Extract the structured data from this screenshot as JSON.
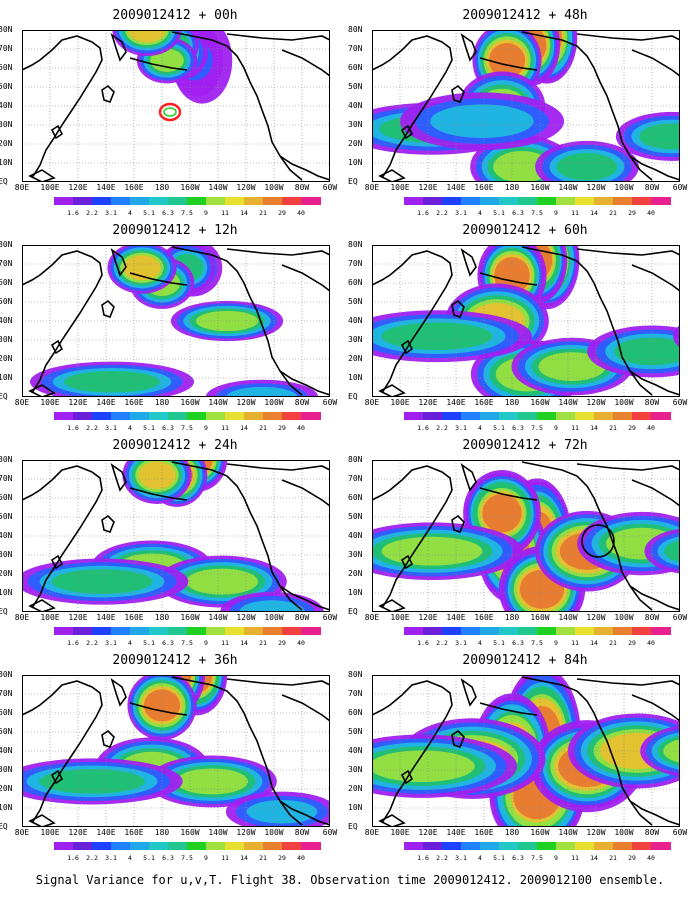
{
  "panels": [
    {
      "title": "2009012412 + 00h",
      "blobs": [
        [
          180,
          -0.3,
          1,
          14,
          30
        ],
        [
          175,
          -0.3,
          1.5,
          12,
          25
        ],
        [
          172,
          -0.3,
          2,
          12,
          20
        ],
        [
          162,
          -0.35,
          3,
          11,
          18
        ],
        [
          155,
          -0.4,
          4,
          10,
          16
        ],
        [
          145,
          -0.3,
          5,
          14,
          16
        ],
        [
          125,
          -0.5,
          6,
          16,
          18
        ]
      ],
      "extra": "ring"
    },
    {
      "title": "2009012412 + 48h",
      "blobs": [
        [
          175,
          -0.45,
          10,
          14,
          32
        ],
        [
          160,
          -0.4,
          8,
          13,
          28
        ],
        [
          135,
          -0.3,
          7,
          16,
          26
        ],
        [
          130,
          0,
          5,
          20,
          24
        ],
        [
          150,
          0.4,
          5,
          24,
          22
        ],
        [
          60,
          0.15,
          4,
          42,
          18
        ],
        [
          110,
          0.1,
          3,
          38,
          20
        ],
        [
          215,
          0.4,
          4,
          24,
          18
        ],
        [
          300,
          0.2,
          4,
          26,
          17
        ]
      ],
      "extra": ""
    },
    {
      "title": "2009012412 + 12h",
      "blobs": [
        [
          170,
          -0.35,
          3,
          14,
          20
        ],
        [
          165,
          -0.35,
          4,
          13,
          18
        ],
        [
          140,
          -0.25,
          5,
          15,
          18
        ],
        [
          120,
          -0.35,
          6,
          16,
          18
        ],
        [
          205,
          0,
          5,
          26,
          14
        ],
        [
          90,
          0.4,
          4,
          38,
          14
        ],
        [
          240,
          0.5,
          3,
          26,
          12
        ]
      ],
      "extra": ""
    },
    {
      "title": "2009012412 + 60h",
      "blobs": [
        [
          175,
          -0.4,
          10,
          15,
          34
        ],
        [
          165,
          -0.4,
          9,
          14,
          30
        ],
        [
          140,
          -0.3,
          8,
          16,
          28
        ],
        [
          125,
          0,
          6,
          24,
          26
        ],
        [
          155,
          0.35,
          5,
          26,
          24
        ],
        [
          200,
          0.3,
          5,
          28,
          20
        ],
        [
          65,
          0.1,
          4,
          44,
          18
        ],
        [
          280,
          0.2,
          4,
          30,
          18
        ],
        [
          340,
          0.1,
          3,
          18,
          14
        ]
      ],
      "extra": ""
    },
    {
      "title": "2009012412 + 24h",
      "blobs": [
        [
          175,
          -0.5,
          8,
          14,
          22
        ],
        [
          155,
          -0.4,
          7,
          14,
          22
        ],
        [
          135,
          -0.4,
          6,
          16,
          20
        ],
        [
          130,
          0.2,
          5,
          28,
          18
        ],
        [
          200,
          0.3,
          5,
          30,
          18
        ],
        [
          80,
          0.3,
          4,
          40,
          16
        ],
        [
          250,
          0.5,
          3,
          24,
          14
        ]
      ],
      "extra": ""
    },
    {
      "title": "2009012412 + 72h",
      "blobs": [
        [
          165,
          0,
          11,
          16,
          40
        ],
        [
          140,
          0.1,
          10,
          16,
          36
        ],
        [
          130,
          -0.15,
          9,
          18,
          30
        ],
        [
          170,
          0.35,
          8,
          20,
          30
        ],
        [
          215,
          0.1,
          7,
          24,
          28
        ],
        [
          60,
          0.1,
          5,
          42,
          20
        ],
        [
          270,
          0.05,
          5,
          30,
          22
        ],
        [
          320,
          0.1,
          4,
          22,
          16
        ]
      ],
      "extra": "circle"
    },
    {
      "title": "2009012412 + 36h",
      "blobs": [
        [
          175,
          -0.5,
          9,
          14,
          28
        ],
        [
          155,
          -0.5,
          8,
          13,
          26
        ],
        [
          140,
          -0.3,
          7,
          16,
          24
        ],
        [
          130,
          0.1,
          5,
          26,
          20
        ],
        [
          190,
          0.2,
          5,
          30,
          18
        ],
        [
          70,
          0.2,
          4,
          42,
          16
        ],
        [
          260,
          0.4,
          3,
          26,
          14
        ]
      ],
      "extra": ""
    },
    {
      "title": "2009012412 + 84h",
      "blobs": [
        [
          170,
          -0.1,
          11,
          18,
          48
        ],
        [
          140,
          0,
          10,
          18,
          40
        ],
        [
          165,
          0.3,
          10,
          22,
          36
        ],
        [
          215,
          0.1,
          8,
          26,
          32
        ],
        [
          100,
          0.05,
          6,
          34,
          28
        ],
        [
          265,
          0,
          6,
          32,
          26
        ],
        [
          50,
          0.1,
          5,
          44,
          22
        ],
        [
          320,
          0,
          5,
          24,
          18
        ]
      ],
      "extra": ""
    }
  ],
  "lat_labels": [
    "80N",
    "70N",
    "60N",
    "50N",
    "40N",
    "30N",
    "20N",
    "10N",
    "EQ"
  ],
  "lon_labels": [
    "80E",
    "100E",
    "120E",
    "140E",
    "160E",
    "180",
    "160W",
    "140W",
    "120W",
    "100W",
    "80W",
    "60W"
  ],
  "colorbar": {
    "colors": [
      "#a020f0",
      "#6a20d8",
      "#2040ff",
      "#2080ff",
      "#20a8e8",
      "#20c8c8",
      "#20c890",
      "#20d020",
      "#a0e040",
      "#e8e030",
      "#e8b030",
      "#e88030",
      "#f04040",
      "#e82090"
    ],
    "labels": [
      "1.6",
      "2.2",
      "3.1",
      "4",
      "5.1",
      "6.3",
      "7.5",
      "9",
      "11",
      "14",
      "21",
      "29",
      "40"
    ]
  },
  "caption": "Signal Variance for u,v,T. Flight 38. Observation time 2009012412. 2009012100 ensemble."
}
